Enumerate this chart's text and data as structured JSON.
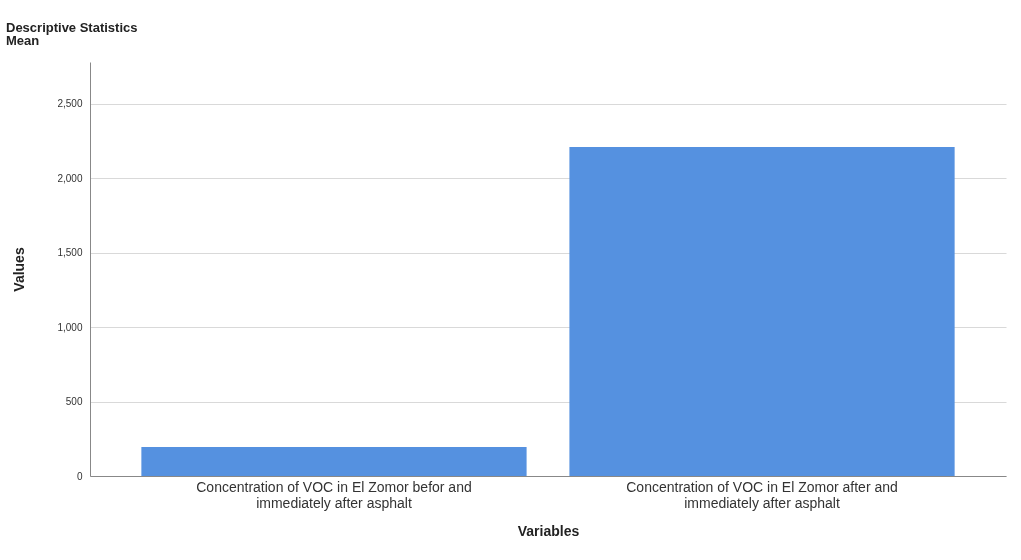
{
  "chart_data": {
    "type": "bar",
    "title": "Descriptive Statistics",
    "subtitle": "Mean",
    "xlabel": "Variables",
    "ylabel": "Values",
    "categories": [
      "Concentration of VOC in El Zomor befor and immediately after asphalt",
      "Concentration of VOC in El Zomor after and immediately after asphalt"
    ],
    "values": [
      195,
      2210
    ],
    "color": "#5591e0",
    "ylim": [
      0,
      2780
    ],
    "yticks": [
      {
        "value": 0,
        "label": "0"
      },
      {
        "value": 500,
        "label": "500"
      },
      {
        "value": 1000,
        "label": "1,000"
      },
      {
        "value": 1500,
        "label": "1,500"
      },
      {
        "value": 2000,
        "label": "2,000"
      },
      {
        "value": 2500,
        "label": "2,500"
      }
    ],
    "grid": "y"
  }
}
